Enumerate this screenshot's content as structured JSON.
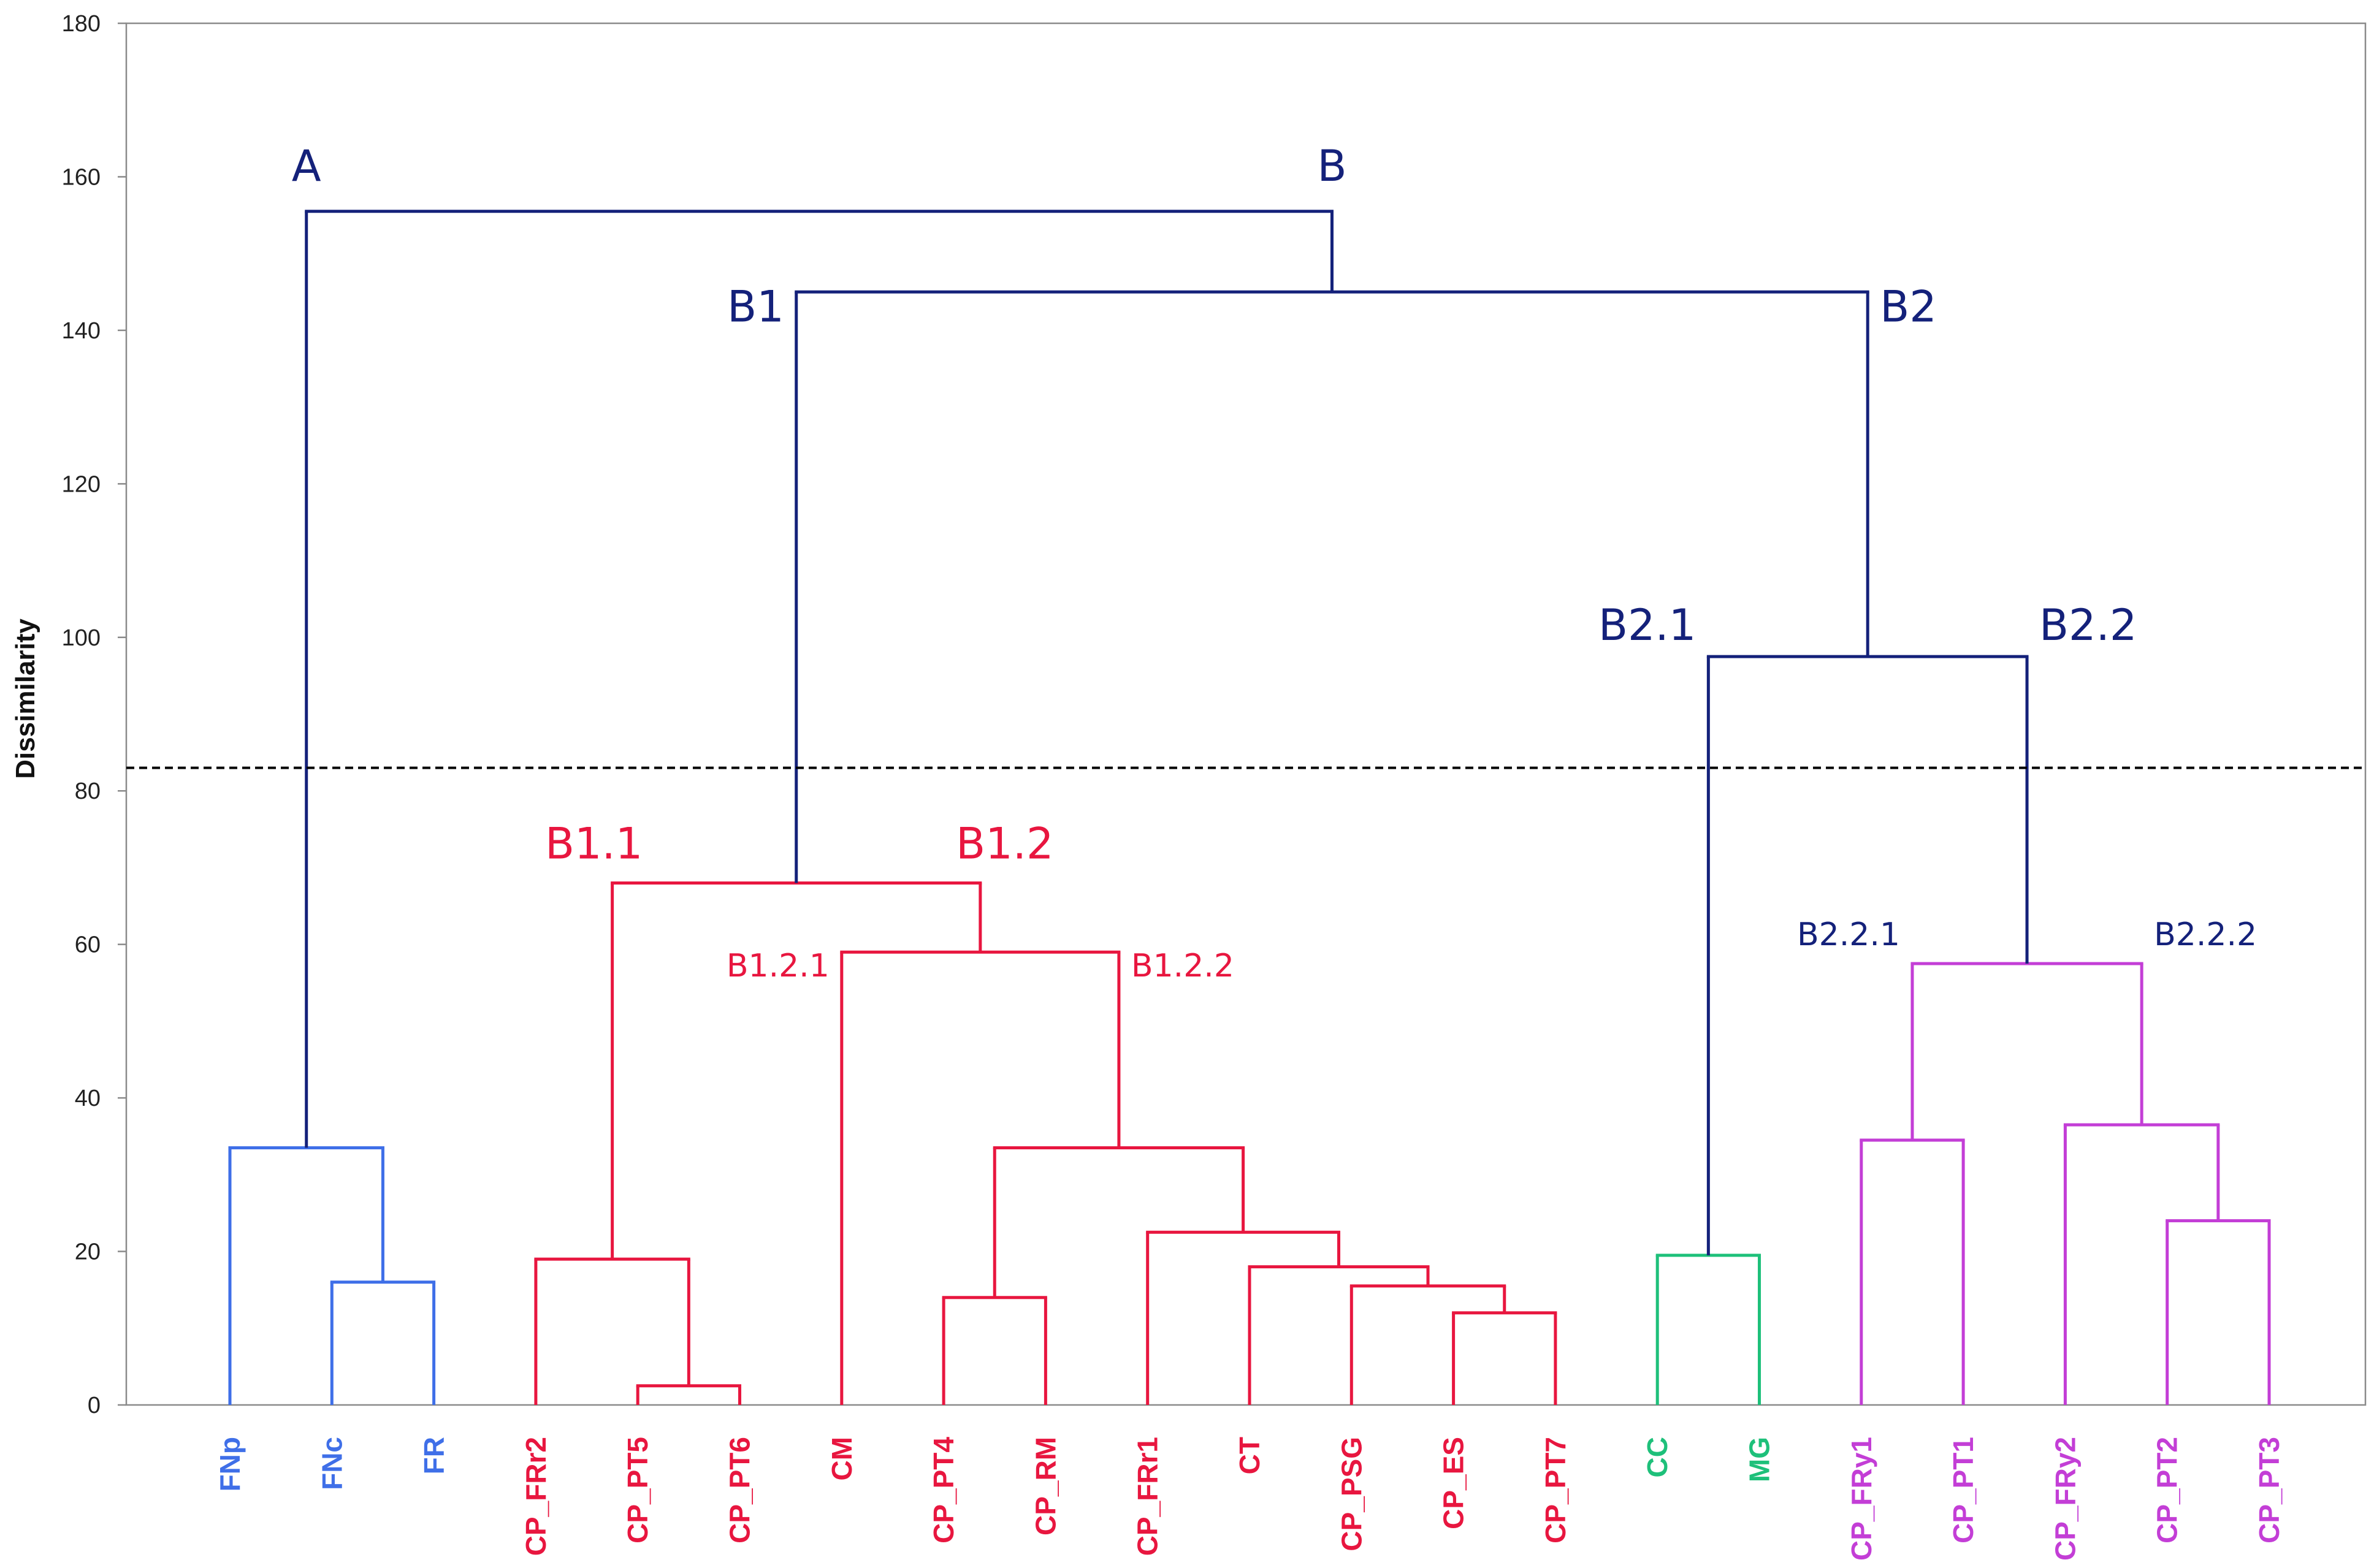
{
  "chart_data": {
    "type": "dendrogram",
    "ylabel": "Dissimilarity",
    "ylim": [
      0,
      180
    ],
    "yticks": [
      0,
      20,
      40,
      60,
      80,
      100,
      120,
      140,
      160,
      180
    ],
    "cutoff": 83,
    "leaves": [
      {
        "name": "FNp",
        "group": "A"
      },
      {
        "name": "FNc",
        "group": "A"
      },
      {
        "name": "FR",
        "group": "A"
      },
      {
        "name": "CP_FRr2",
        "group": "B1"
      },
      {
        "name": "CP_PT5",
        "group": "B1"
      },
      {
        "name": "CP_PT6",
        "group": "B1"
      },
      {
        "name": "CM",
        "group": "B1"
      },
      {
        "name": "CP_PT4",
        "group": "B1"
      },
      {
        "name": "CP_RM",
        "group": "B1"
      },
      {
        "name": "CP_FRr1",
        "group": "B1"
      },
      {
        "name": "CT",
        "group": "B1"
      },
      {
        "name": "CP_PSG",
        "group": "B1"
      },
      {
        "name": "CP_ES",
        "group": "B1"
      },
      {
        "name": "CP_PT7",
        "group": "B1"
      },
      {
        "name": "CC",
        "group": "B2.1"
      },
      {
        "name": "MG",
        "group": "B2.1"
      },
      {
        "name": "CP_FRy1",
        "group": "B2.2"
      },
      {
        "name": "CP_PT1",
        "group": "B2.2"
      },
      {
        "name": "CP_FRy2",
        "group": "B2.2"
      },
      {
        "name": "CP_PT2",
        "group": "B2.2"
      },
      {
        "name": "CP_PT3",
        "group": "B2.2"
      }
    ],
    "merges": [
      {
        "id": "m_fnc_fr",
        "children": [
          "FNc",
          "FR"
        ],
        "height": 16,
        "group": "A"
      },
      {
        "id": "m_A",
        "children": [
          "FNp",
          "m_fnc_fr"
        ],
        "height": 33.5,
        "group": "A"
      },
      {
        "id": "m_pt5_pt6",
        "children": [
          "CP_PT5",
          "CP_PT6"
        ],
        "height": 2.5,
        "group": "B1"
      },
      {
        "id": "m_B11",
        "children": [
          "CP_FRr2",
          "m_pt5_pt6"
        ],
        "height": 19,
        "group": "B1"
      },
      {
        "id": "m_pt4_rm",
        "children": [
          "CP_PT4",
          "CP_RM"
        ],
        "height": 14,
        "group": "B1"
      },
      {
        "id": "m_es_pt7",
        "children": [
          "CP_ES",
          "CP_PT7"
        ],
        "height": 12,
        "group": "B1"
      },
      {
        "id": "m_psg",
        "children": [
          "CP_PSG",
          "m_es_pt7"
        ],
        "height": 15.5,
        "group": "B1"
      },
      {
        "id": "m_ct",
        "children": [
          "CT",
          "m_psg"
        ],
        "height": 18,
        "group": "B1"
      },
      {
        "id": "m_frr1",
        "children": [
          "CP_FRr1",
          "m_ct"
        ],
        "height": 22.5,
        "group": "B1"
      },
      {
        "id": "m_B122",
        "children": [
          "m_pt4_rm",
          "m_frr1"
        ],
        "height": 33.5,
        "group": "B1"
      },
      {
        "id": "m_B12",
        "children": [
          "CM",
          "m_B122"
        ],
        "height": 59,
        "group": "B1"
      },
      {
        "id": "m_B1",
        "children": [
          "m_B11",
          "m_B12"
        ],
        "height": 68,
        "group": "B1"
      },
      {
        "id": "m_B21",
        "children": [
          "CC",
          "MG"
        ],
        "height": 19.5,
        "group": "B2.1"
      },
      {
        "id": "m_fry1_pt1",
        "children": [
          "CP_FRy1",
          "CP_PT1"
        ],
        "height": 34.5,
        "group": "B2.2"
      },
      {
        "id": "m_pt2_pt3",
        "children": [
          "CP_PT2",
          "CP_PT3"
        ],
        "height": 24,
        "group": "B2.2"
      },
      {
        "id": "m_B222",
        "children": [
          "CP_FRy2",
          "m_pt2_pt3"
        ],
        "height": 36.5,
        "group": "B2.2"
      },
      {
        "id": "m_B22",
        "children": [
          "m_fry1_pt1",
          "m_B222"
        ],
        "height": 57.5,
        "group": "B2.2"
      },
      {
        "id": "m_B2",
        "children": [
          "m_B21",
          "m_B22"
        ],
        "height": 97.5,
        "group": "root"
      },
      {
        "id": "m_Broot",
        "children": [
          "m_B1",
          "m_B2"
        ],
        "height": 145,
        "group": "root"
      },
      {
        "id": "m_root",
        "children": [
          "m_A",
          "m_Broot"
        ],
        "height": 155.5,
        "group": "root"
      }
    ],
    "group_colors": {
      "A": "#3f6fe8",
      "B1": "#e8163f",
      "B2.1": "#1ec07a",
      "B2.2": "#c33ed6",
      "root": "#14217a"
    },
    "cluster_labels": [
      {
        "text": "A",
        "at": "m_root",
        "side": "left",
        "size": "big",
        "color": "#14217a"
      },
      {
        "text": "B",
        "at": "m_root",
        "side": "right",
        "size": "big",
        "color": "#14217a"
      },
      {
        "text": "B1",
        "at": "m_Broot",
        "side": "left",
        "size": "big",
        "color": "#14217a"
      },
      {
        "text": "B2",
        "at": "m_Broot",
        "side": "right",
        "size": "big",
        "color": "#14217a"
      },
      {
        "text": "B2.1",
        "at": "m_B2",
        "side": "left",
        "size": "big",
        "color": "#14217a"
      },
      {
        "text": "B2.2",
        "at": "m_B2",
        "side": "right",
        "size": "big",
        "color": "#14217a"
      },
      {
        "text": "B1.1",
        "at": "m_B1",
        "side": "left",
        "size": "big",
        "color": "#e8163f"
      },
      {
        "text": "B1.2",
        "at": "m_B1",
        "side": "right",
        "size": "big",
        "color": "#e8163f"
      },
      {
        "text": "B1.2.1",
        "at": "m_B12",
        "side": "left",
        "size": "small",
        "color": "#e8163f"
      },
      {
        "text": "B1.2.2",
        "at": "m_B12",
        "side": "right",
        "size": "small",
        "color": "#e8163f"
      },
      {
        "text": "B2.2.1",
        "at": "m_B22",
        "side": "left",
        "size": "small",
        "color": "#14217a"
      },
      {
        "text": "B2.2.2",
        "at": "m_B22",
        "side": "right",
        "size": "small",
        "color": "#14217a"
      }
    ]
  }
}
